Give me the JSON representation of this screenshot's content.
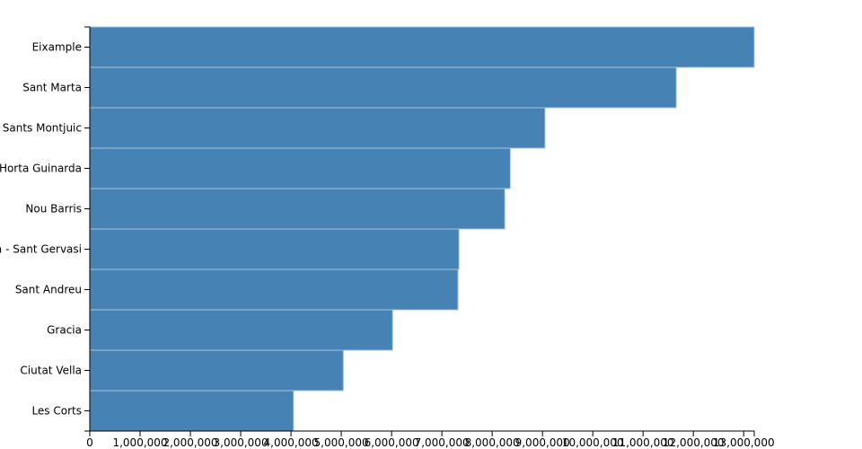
{
  "chart_data": {
    "type": "bar",
    "orientation": "horizontal",
    "categories": [
      "Eixample",
      "Sant Marta",
      "Sants Montjuic",
      "Horta Guinarda",
      "Nou Barris",
      "Sarria - Sant Gervasi",
      "Sant Andreu",
      "Gracia",
      "Ciutat Vella",
      "Les Corts"
    ],
    "values": [
      13210000,
      11660000,
      9050000,
      8360000,
      8250000,
      7340000,
      7320000,
      6020000,
      5040000,
      4050000
    ],
    "color": "#4682b4",
    "xlim": [
      0,
      13210000
    ],
    "xticks": [
      0,
      {
        "value": 1000000,
        "label": "1,000,000"
      },
      {
        "value": 2000000,
        "label": "2,000,000"
      },
      {
        "value": 3000000,
        "label": "3,000,000"
      },
      {
        "value": 4000000,
        "label": "4,000,000"
      },
      {
        "value": 5000000,
        "label": "5,000,000"
      },
      {
        "value": 6000000,
        "label": "6,000,000"
      },
      {
        "value": 7000000,
        "label": "7,000,000"
      },
      {
        "value": 8000000,
        "label": "8,000,000"
      },
      {
        "value": 9000000,
        "label": "9,000,000"
      },
      {
        "value": 10000000,
        "label": "10,000,000"
      },
      {
        "value": 11000000,
        "label": "11,000,000"
      },
      {
        "value": 12000000,
        "label": "12,000,000"
      },
      {
        "value": 13000000,
        "label": "13,000,000"
      }
    ]
  }
}
